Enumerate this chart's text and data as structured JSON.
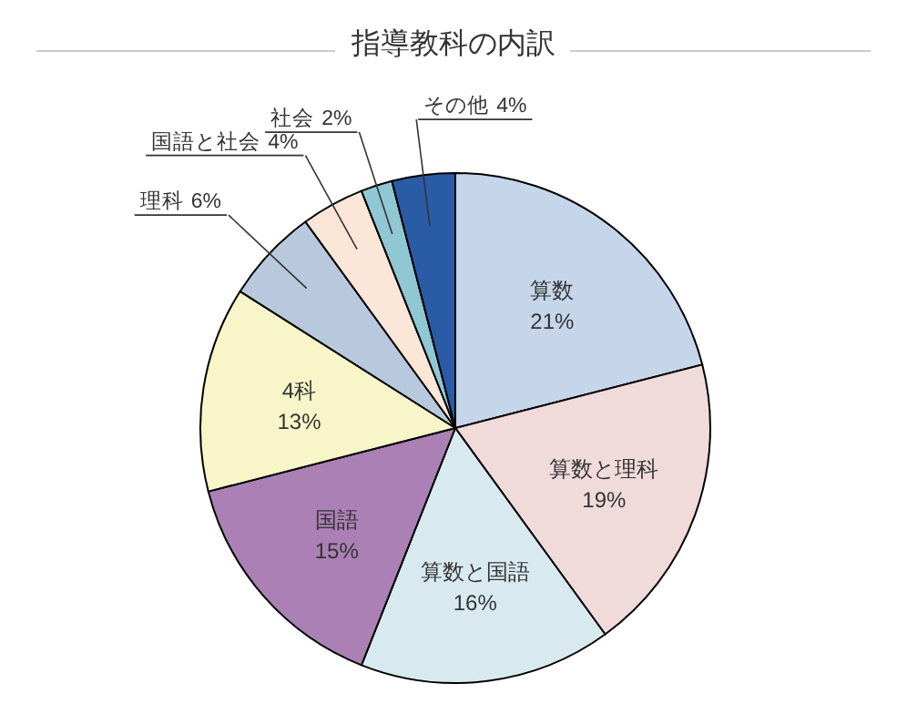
{
  "chart_data": {
    "type": "pie",
    "title": "指導教科の内訳",
    "categories": [
      "算数",
      "算数と理科",
      "算数と国語",
      "国語",
      "4科",
      "理科",
      "国語と社会",
      "社会",
      "その他"
    ],
    "values": [
      21,
      19,
      16,
      15,
      13,
      6,
      4,
      2,
      4
    ],
    "colors": [
      "#c5d5ea",
      "#f0dada",
      "#d8eaf0",
      "#ab80b5",
      "#f8f6c8",
      "#b8c9de",
      "#fbe6d8",
      "#8fc7d3",
      "#2a5ba5"
    ],
    "value_labels": [
      "21%",
      "19%",
      "16%",
      "15%",
      "13%",
      "6%",
      "4%",
      "2%",
      "4%"
    ]
  }
}
